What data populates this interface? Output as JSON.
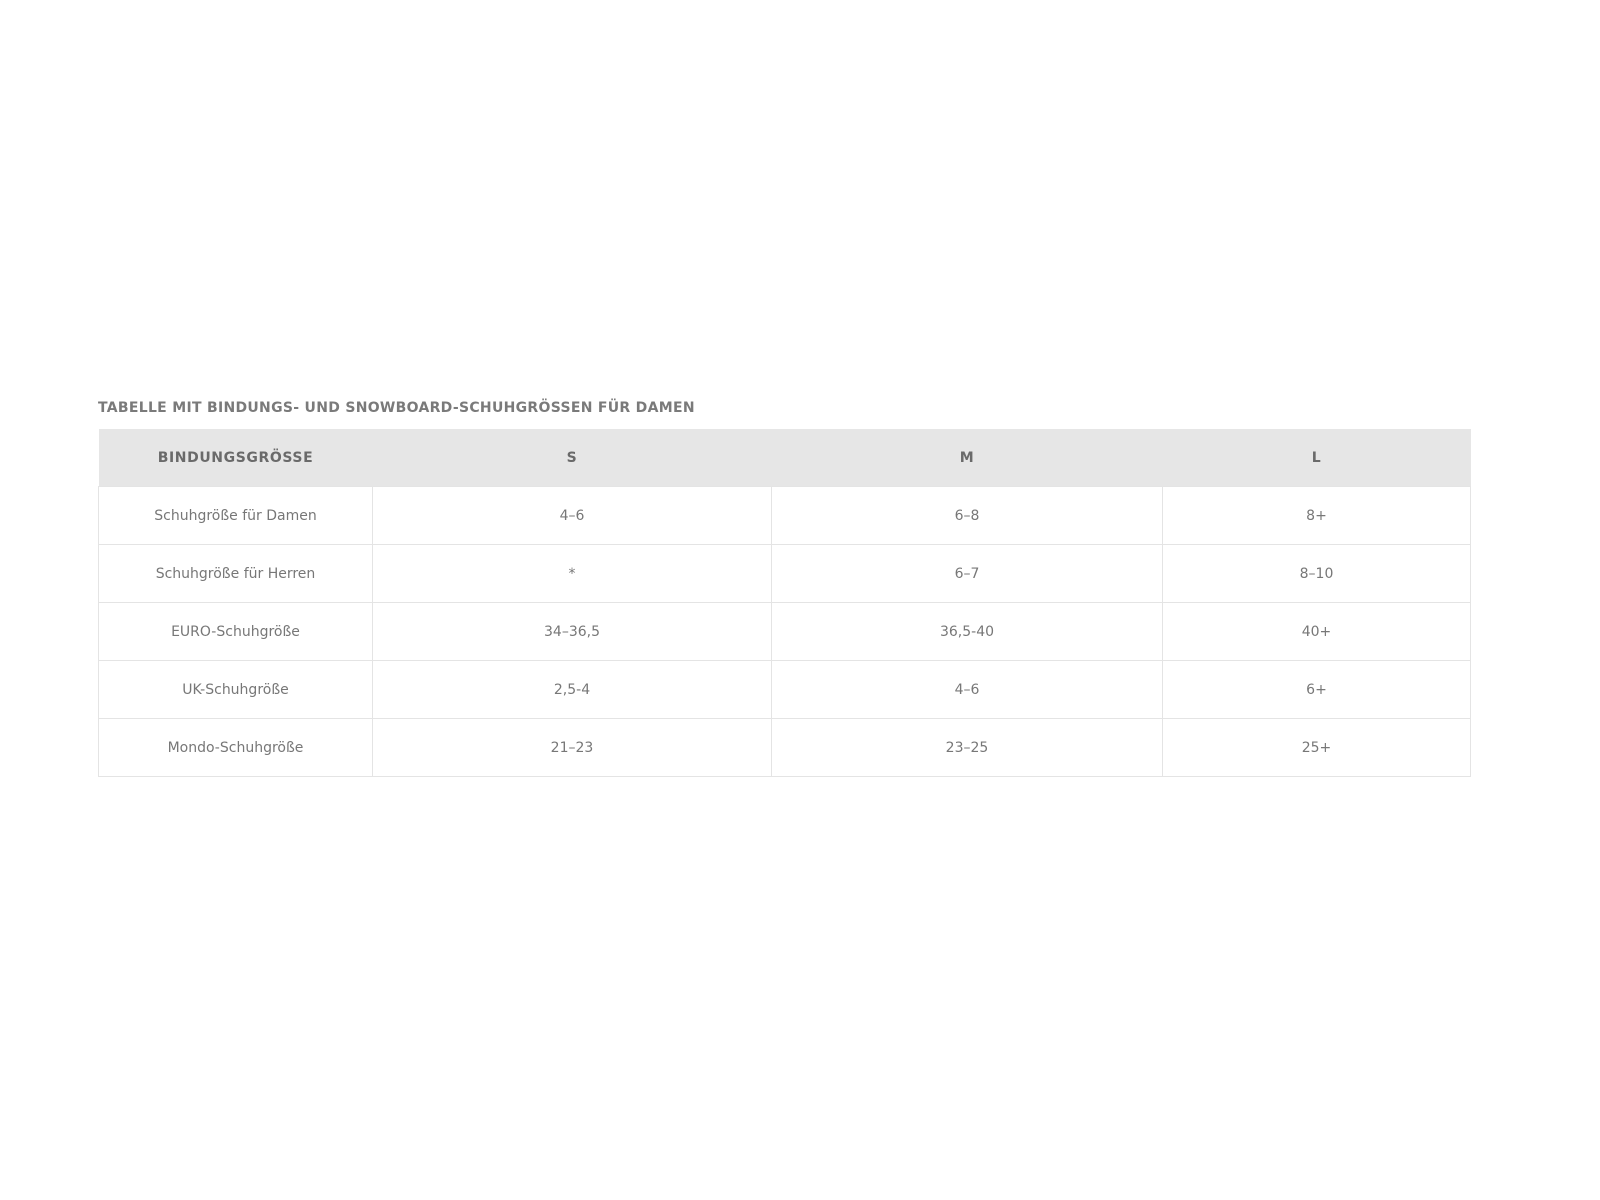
{
  "title": "TABELLE MIT BINDUNGS- UND SNOWBOARD-SCHUHGRÖSSEN FÜR DAMEN",
  "table": {
    "headers": [
      "BINDUNGSGRÖSSE",
      "S",
      "M",
      "L"
    ],
    "rows": [
      [
        "Schuhgröße für Damen",
        "4–6",
        "6–8",
        "8+"
      ],
      [
        "Schuhgröße für Herren",
        "*",
        "6–7",
        "8–10"
      ],
      [
        "EURO-Schuhgröße",
        "34–36,5",
        "36,5-40",
        "40+"
      ],
      [
        "UK-Schuhgröße",
        "2,5-4",
        "4–6",
        "6+"
      ],
      [
        "Mondo-Schuhgröße",
        "21–23",
        "23–25",
        "25+"
      ]
    ]
  }
}
